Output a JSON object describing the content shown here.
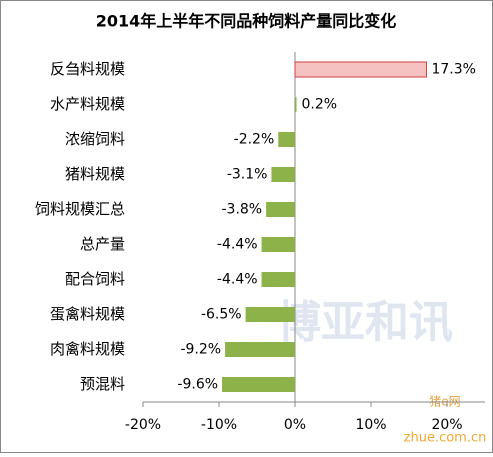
{
  "chart_data": {
    "type": "hbar",
    "title": "2014年上半年不同品种饲料产量同比变化",
    "categories": [
      "反刍料规模",
      "水产料规模",
      "浓缩饲料",
      "猪料规模",
      "饲料规模汇总",
      "总产量",
      "配合饲料",
      "蛋禽料规模",
      "肉禽料规模",
      "预混料"
    ],
    "values": [
      17.3,
      0.2,
      -2.2,
      -3.1,
      -3.8,
      -4.4,
      -4.4,
      -6.5,
      -9.2,
      -9.6
    ],
    "value_labels": [
      "17.3%",
      "0.2%",
      "-2.2%",
      "-3.1%",
      "-3.8%",
      "-4.4%",
      "-4.4%",
      "-6.5%",
      "-9.2%",
      "-9.6%"
    ],
    "colors": [
      "#f6c1c1",
      "#8db24a",
      "#8db24a",
      "#8db24a",
      "#8db24a",
      "#8db24a",
      "#8db24a",
      "#8db24a",
      "#8db24a",
      "#8db24a"
    ],
    "xlim": [
      -20,
      25
    ],
    "xticks": [
      {
        "value": -20,
        "label": "-20%"
      },
      {
        "value": -10,
        "label": "-10%"
      },
      {
        "value": 0,
        "label": "0%"
      },
      {
        "value": 10,
        "label": "10%"
      },
      {
        "value": 20,
        "label": "20%"
      }
    ],
    "grid": false,
    "watermarks": [
      "博亚和讯",
      "猪e网",
      "zhue.com.cn"
    ]
  }
}
